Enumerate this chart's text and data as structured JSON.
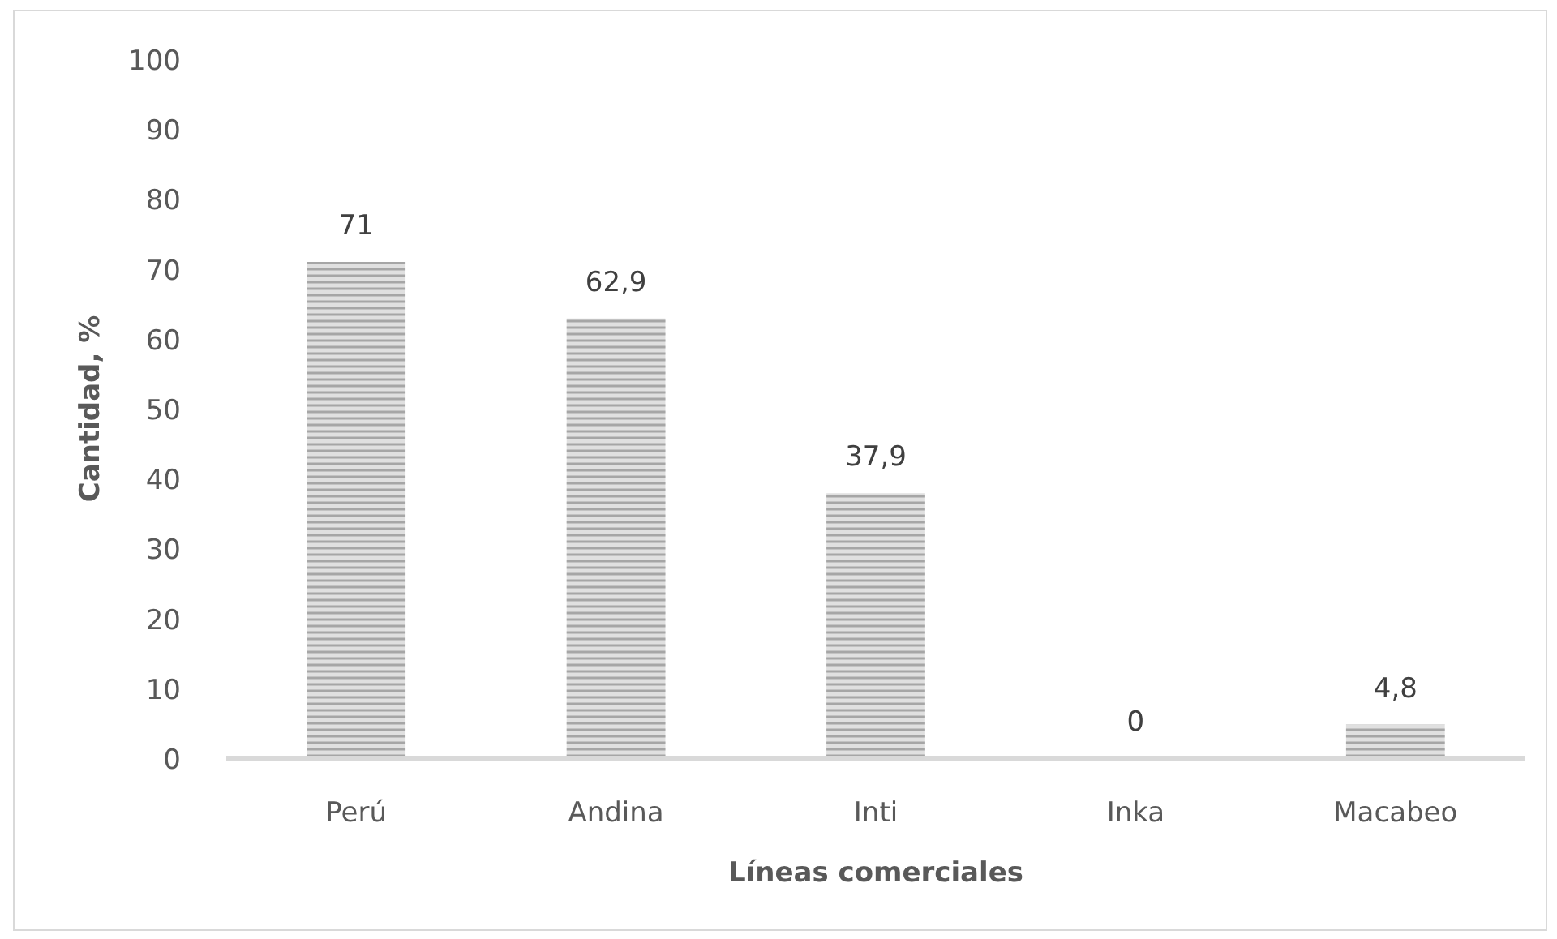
{
  "chart_data": {
    "type": "bar",
    "xlabel": "Líneas comerciales",
    "ylabel": "Cantidad, %",
    "categories": [
      "Perú",
      "Andina",
      "Inti",
      "Inka",
      "Macabeo"
    ],
    "values": [
      71,
      62.9,
      37.9,
      0,
      4.8
    ],
    "value_labels": [
      "71",
      "62,9",
      "37,9",
      "0",
      "4,8"
    ],
    "color": "#a6a6a6",
    "ylim": [
      0,
      100
    ],
    "yticks": [
      0,
      10,
      20,
      30,
      40,
      50,
      60,
      70,
      80,
      90,
      100
    ],
    "grid": false
  }
}
